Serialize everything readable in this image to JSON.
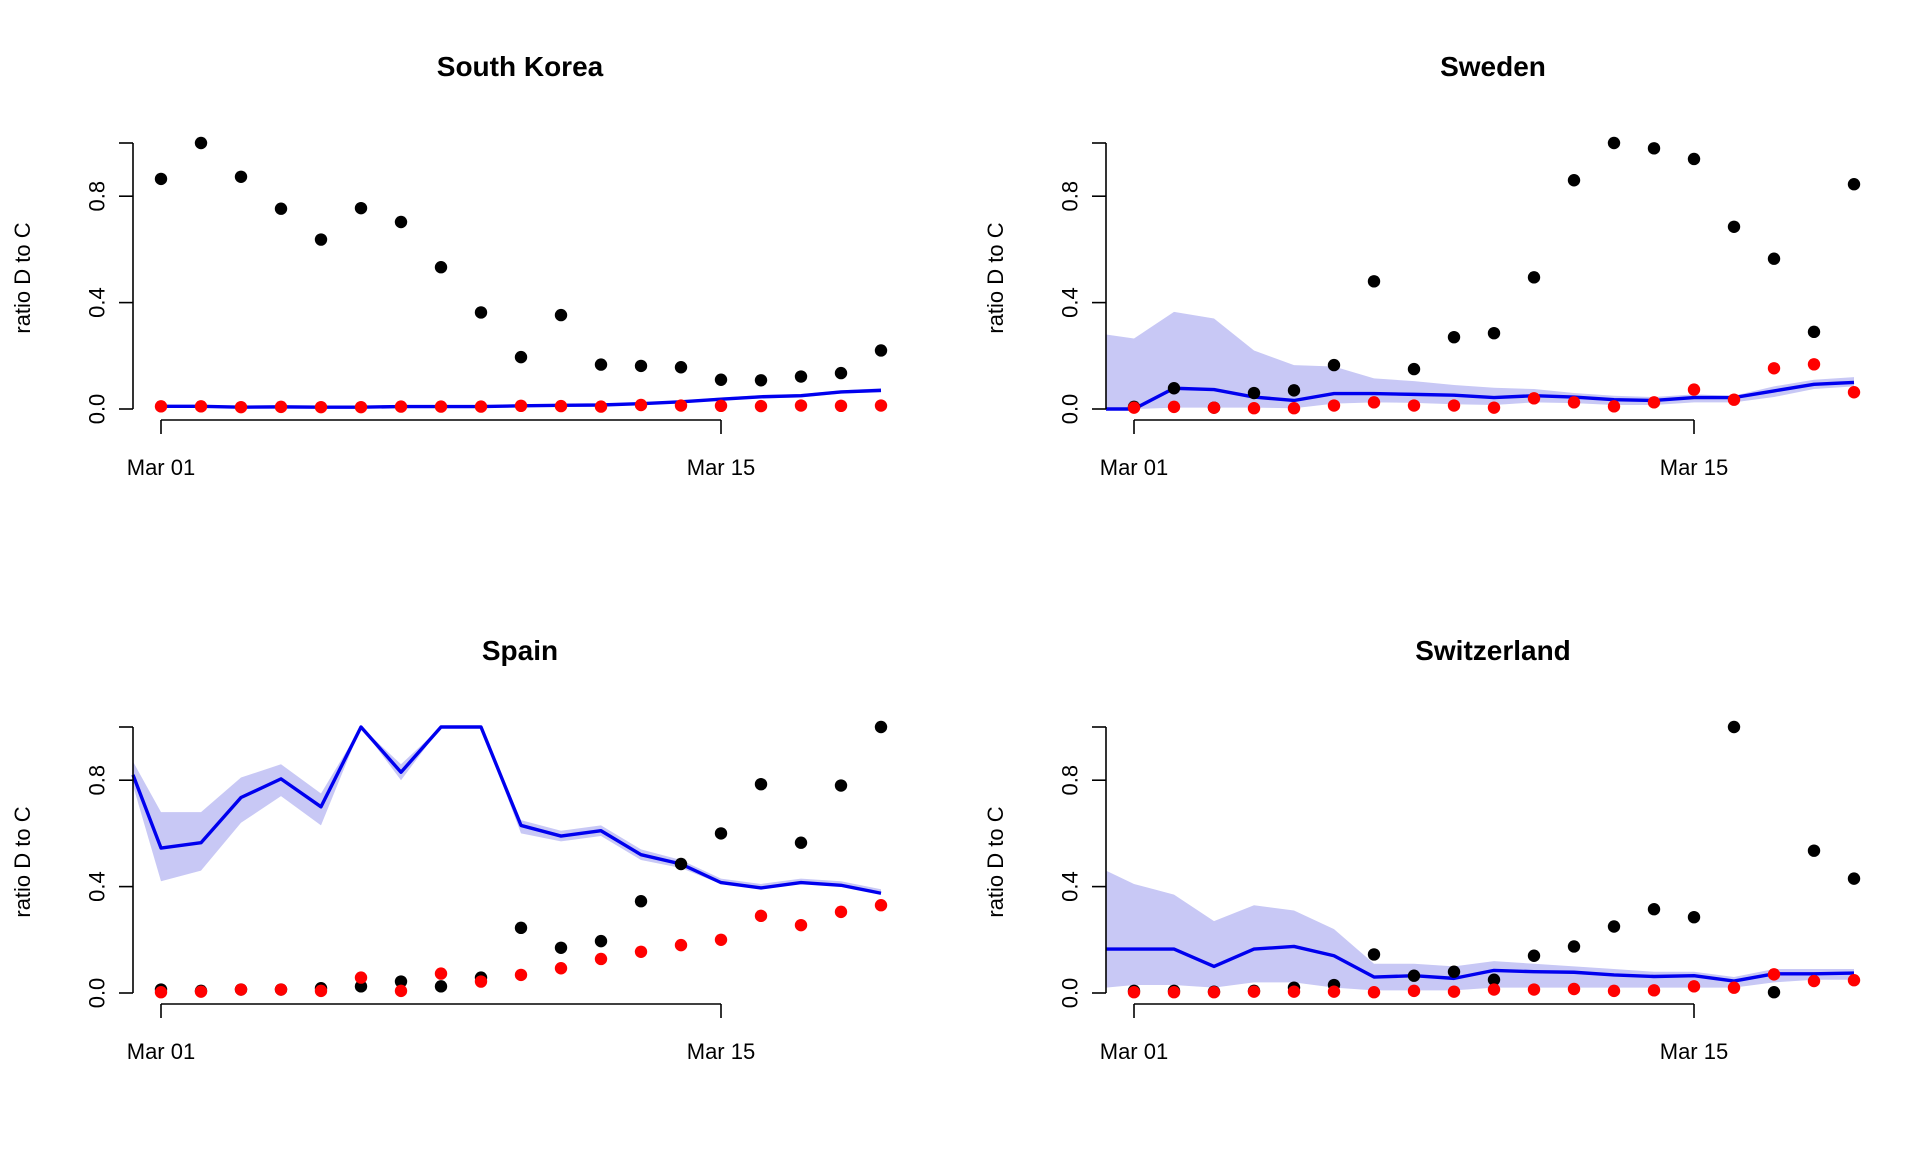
{
  "chart_data": [
    {
      "type": "line",
      "title": "South Korea",
      "ylabel": "ratio D to C",
      "xlabel": "",
      "ylim": [
        0,
        1
      ],
      "yticks": [
        0.0,
        0.4,
        0.8
      ],
      "ytick_labels": [
        "0.0",
        "0.4",
        "0.8"
      ],
      "xticks": [
        "2020-03-01",
        "2020-03-15"
      ],
      "xtick_labels": [
        "Mar 01",
        "Mar 15"
      ],
      "x": [
        "2020-03-01",
        "2020-03-02",
        "2020-03-03",
        "2020-03-04",
        "2020-03-05",
        "2020-03-06",
        "2020-03-07",
        "2020-03-08",
        "2020-03-09",
        "2020-03-10",
        "2020-03-11",
        "2020-03-12",
        "2020-03-13",
        "2020-03-14",
        "2020-03-15",
        "2020-03-16",
        "2020-03-17",
        "2020-03-18",
        "2020-03-19"
      ],
      "band_color": "#c8c8f5",
      "line_color": "#0000ee",
      "series": [
        {
          "role": "band_lower",
          "values": [
            0.005,
            0.005,
            0.003,
            0.004,
            0.003,
            0.003,
            0.005,
            0.005,
            0.005,
            0.008,
            0.01,
            0.01,
            0.015,
            0.022,
            0.032,
            0.04,
            0.043,
            0.058,
            0.063
          ]
        },
        {
          "role": "band_upper",
          "values": [
            0.015,
            0.015,
            0.012,
            0.012,
            0.011,
            0.011,
            0.013,
            0.013,
            0.013,
            0.016,
            0.018,
            0.019,
            0.025,
            0.032,
            0.043,
            0.052,
            0.056,
            0.07,
            0.078
          ]
        },
        {
          "role": "line",
          "values": [
            0.01,
            0.01,
            0.007,
            0.008,
            0.007,
            0.007,
            0.009,
            0.009,
            0.009,
            0.012,
            0.014,
            0.015,
            0.02,
            0.027,
            0.037,
            0.046,
            0.05,
            0.064,
            0.07
          ]
        },
        {
          "role": "points",
          "color": "#000000",
          "values": [
            0.865,
            1.0,
            0.873,
            0.753,
            0.637,
            0.755,
            0.703,
            0.533,
            0.363,
            0.195,
            0.353,
            0.167,
            0.162,
            0.157,
            0.11,
            0.108,
            0.122,
            0.135,
            0.22
          ]
        },
        {
          "role": "points",
          "color": "#ff0000",
          "values": [
            0.01,
            0.01,
            0.007,
            0.008,
            0.007,
            0.007,
            0.009,
            0.009,
            0.009,
            0.012,
            0.011,
            0.009,
            0.015,
            0.013,
            0.012,
            0.011,
            0.013,
            0.012,
            0.013
          ]
        }
      ]
    },
    {
      "type": "line",
      "title": "Sweden",
      "ylabel": "ratio D to C",
      "xlabel": "",
      "ylim": [
        0,
        1
      ],
      "yticks": [
        0.0,
        0.4,
        0.8
      ],
      "ytick_labels": [
        "0.0",
        "0.4",
        "0.8"
      ],
      "xticks": [
        "2020-03-01",
        "2020-03-15"
      ],
      "xtick_labels": [
        "Mar 01",
        "Mar 15"
      ],
      "band_start": "2020-02-28",
      "x": [
        "2020-02-28",
        "2020-03-01",
        "2020-03-02",
        "2020-03-03",
        "2020-03-04",
        "2020-03-05",
        "2020-03-06",
        "2020-03-07",
        "2020-03-08",
        "2020-03-09",
        "2020-03-10",
        "2020-03-11",
        "2020-03-12",
        "2020-03-13",
        "2020-03-14",
        "2020-03-15",
        "2020-03-16",
        "2020-03-17",
        "2020-03-18",
        "2020-03-19"
      ],
      "band_color": "#c8c8f5",
      "line_color": "#0000ee",
      "series": [
        {
          "role": "band_lower",
          "values": [
            0.0,
            0.0,
            0.005,
            0.005,
            0.005,
            0.003,
            0.02,
            0.025,
            0.023,
            0.018,
            0.015,
            0.025,
            0.022,
            0.015,
            0.015,
            0.025,
            0.025,
            0.045,
            0.075,
            0.085
          ]
        },
        {
          "role": "band_upper",
          "values": [
            0.28,
            0.265,
            0.365,
            0.34,
            0.22,
            0.165,
            0.16,
            0.115,
            0.105,
            0.09,
            0.08,
            0.075,
            0.06,
            0.05,
            0.045,
            0.055,
            0.05,
            0.085,
            0.11,
            0.12
          ]
        },
        {
          "role": "line",
          "values": [
            0.0,
            0.0,
            0.078,
            0.073,
            0.045,
            0.032,
            0.058,
            0.058,
            0.055,
            0.052,
            0.043,
            0.05,
            0.045,
            0.035,
            0.032,
            0.043,
            0.043,
            0.068,
            0.093,
            0.1
          ]
        },
        {
          "role": "points",
          "color": "#000000",
          "values": [
            null,
            0.008,
            0.078,
            0.005,
            0.06,
            0.07,
            0.165,
            0.48,
            0.15,
            0.27,
            0.285,
            0.495,
            0.86,
            1.0,
            0.98,
            0.94,
            0.685,
            0.565,
            0.29,
            0.845
          ]
        },
        {
          "role": "points",
          "color": "#ff0000",
          "values": [
            null,
            0.005,
            0.008,
            0.005,
            0.003,
            0.003,
            0.013,
            0.025,
            0.013,
            0.013,
            0.005,
            0.04,
            0.025,
            0.01,
            0.025,
            0.073,
            0.035,
            0.153,
            0.168,
            0.063
          ]
        }
      ]
    },
    {
      "type": "line",
      "title": "Spain",
      "ylabel": "ratio D to C",
      "xlabel": "",
      "ylim": [
        0,
        1
      ],
      "yticks": [
        0.0,
        0.4,
        0.8
      ],
      "ytick_labels": [
        "0.0",
        "0.4",
        "0.8"
      ],
      "xticks": [
        "2020-03-01",
        "2020-03-15"
      ],
      "xtick_labels": [
        "Mar 01",
        "Mar 15"
      ],
      "band_start": "2020-02-28",
      "x": [
        "2020-02-28",
        "2020-03-01",
        "2020-03-02",
        "2020-03-03",
        "2020-03-04",
        "2020-03-05",
        "2020-03-06",
        "2020-03-07",
        "2020-03-08",
        "2020-03-09",
        "2020-03-10",
        "2020-03-11",
        "2020-03-12",
        "2020-03-13",
        "2020-03-14",
        "2020-03-15",
        "2020-03-16",
        "2020-03-17",
        "2020-03-18",
        "2020-03-19"
      ],
      "band_color": "#c8c8f5",
      "line_color": "#0000ee",
      "series": [
        {
          "role": "band_lower",
          "values": [
            0.78,
            0.42,
            0.46,
            0.64,
            0.74,
            0.63,
            1.0,
            0.8,
            1.0,
            1.0,
            0.6,
            0.57,
            0.59,
            0.5,
            0.47,
            0.41,
            0.39,
            0.41,
            0.4,
            0.37
          ]
        },
        {
          "role": "band_upper",
          "values": [
            0.87,
            0.68,
            0.68,
            0.81,
            0.86,
            0.75,
            1.0,
            0.86,
            1.0,
            1.0,
            0.65,
            0.61,
            0.63,
            0.54,
            0.5,
            0.43,
            0.41,
            0.43,
            0.42,
            0.39
          ]
        },
        {
          "role": "line",
          "values": [
            0.82,
            0.545,
            0.565,
            0.735,
            0.805,
            0.7,
            1.0,
            0.83,
            1.0,
            1.0,
            0.63,
            0.59,
            0.61,
            0.52,
            0.485,
            0.415,
            0.395,
            0.415,
            0.405,
            0.375
          ]
        },
        {
          "role": "points",
          "color": "#000000",
          "values": [
            null,
            0.013,
            0.008,
            0.013,
            0.013,
            0.018,
            0.025,
            0.043,
            0.025,
            0.058,
            0.245,
            0.17,
            0.195,
            0.345,
            0.485,
            0.6,
            0.785,
            0.565,
            0.78,
            1.0
          ]
        },
        {
          "role": "points",
          "color": "#ff0000",
          "values": [
            null,
            0.003,
            0.005,
            0.013,
            0.013,
            0.008,
            0.058,
            0.008,
            0.073,
            0.043,
            0.068,
            0.093,
            0.128,
            0.155,
            0.18,
            0.2,
            0.29,
            0.255,
            0.305,
            0.33
          ]
        }
      ]
    },
    {
      "type": "line",
      "title": "Switzerland",
      "ylabel": "ratio D to C",
      "xlabel": "",
      "ylim": [
        0,
        1
      ],
      "yticks": [
        0.0,
        0.4,
        0.8
      ],
      "ytick_labels": [
        "0.0",
        "0.4",
        "0.8"
      ],
      "xticks": [
        "2020-03-01",
        "2020-03-15"
      ],
      "xtick_labels": [
        "Mar 01",
        "Mar 15"
      ],
      "band_start": "2020-02-28",
      "x": [
        "2020-02-28",
        "2020-03-01",
        "2020-03-02",
        "2020-03-03",
        "2020-03-04",
        "2020-03-05",
        "2020-03-06",
        "2020-03-07",
        "2020-03-08",
        "2020-03-09",
        "2020-03-10",
        "2020-03-11",
        "2020-03-12",
        "2020-03-13",
        "2020-03-14",
        "2020-03-15",
        "2020-03-16",
        "2020-03-17",
        "2020-03-18",
        "2020-03-19"
      ],
      "band_color": "#c8c8f5",
      "line_color": "#0000ee",
      "series": [
        {
          "role": "band_lower",
          "values": [
            0.02,
            0.03,
            0.03,
            0.02,
            0.04,
            0.04,
            0.02,
            0.01,
            0.01,
            0.01,
            0.02,
            0.02,
            0.02,
            0.02,
            0.02,
            0.02,
            0.02,
            0.04,
            0.05,
            0.05
          ]
        },
        {
          "role": "band_upper",
          "values": [
            0.46,
            0.41,
            0.37,
            0.27,
            0.33,
            0.31,
            0.24,
            0.11,
            0.11,
            0.1,
            0.12,
            0.11,
            0.1,
            0.09,
            0.08,
            0.08,
            0.06,
            0.09,
            0.09,
            0.09
          ]
        },
        {
          "role": "line",
          "values": [
            0.165,
            0.165,
            0.165,
            0.1,
            0.165,
            0.175,
            0.14,
            0.06,
            0.065,
            0.055,
            0.085,
            0.08,
            0.078,
            0.068,
            0.062,
            0.065,
            0.045,
            0.072,
            0.072,
            0.075
          ]
        },
        {
          "role": "points",
          "color": "#000000",
          "values": [
            null,
            0.008,
            0.008,
            0.005,
            0.008,
            0.02,
            0.03,
            0.145,
            0.065,
            0.08,
            0.05,
            0.14,
            0.175,
            0.25,
            0.315,
            0.285,
            1.0,
            0.003,
            0.535,
            0.43
          ]
        },
        {
          "role": "points",
          "color": "#ff0000",
          "values": [
            null,
            0.003,
            0.003,
            0.003,
            0.005,
            0.005,
            0.005,
            0.003,
            0.008,
            0.005,
            0.013,
            0.013,
            0.015,
            0.008,
            0.01,
            0.025,
            0.02,
            0.07,
            0.045,
            0.048
          ]
        }
      ]
    }
  ]
}
